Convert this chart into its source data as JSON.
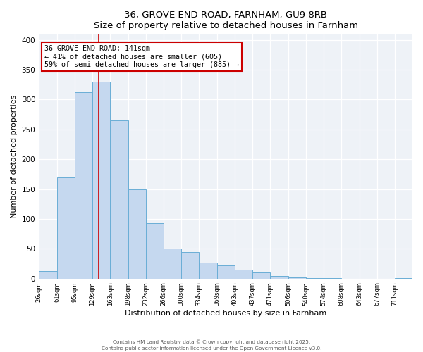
{
  "title": "36, GROVE END ROAD, FARNHAM, GU9 8RB",
  "subtitle": "Size of property relative to detached houses in Farnham",
  "xlabel": "Distribution of detached houses by size in Farnham",
  "ylabel": "Number of detached properties",
  "bar_labels": [
    "26sqm",
    "61sqm",
    "95sqm",
    "129sqm",
    "163sqm",
    "198sqm",
    "232sqm",
    "266sqm",
    "300sqm",
    "334sqm",
    "369sqm",
    "403sqm",
    "437sqm",
    "471sqm",
    "506sqm",
    "540sqm",
    "574sqm",
    "608sqm",
    "643sqm",
    "677sqm",
    "711sqm"
  ],
  "bar_values": [
    13,
    170,
    312,
    330,
    265,
    150,
    93,
    50,
    44,
    27,
    22,
    15,
    10,
    4,
    2,
    1,
    1,
    0,
    0,
    0,
    1
  ],
  "bin_edges": [
    26,
    61,
    95,
    129,
    163,
    198,
    232,
    266,
    300,
    334,
    369,
    403,
    437,
    471,
    506,
    540,
    574,
    608,
    643,
    677,
    711,
    745
  ],
  "bar_color": "#c5d8ef",
  "bar_edgecolor": "#6aaed6",
  "property_line_x": 141,
  "property_line_color": "#cc0000",
  "annotation_line1": "36 GROVE END ROAD: 141sqm",
  "annotation_line2": "← 41% of detached houses are smaller (605)",
  "annotation_line3": "59% of semi-detached houses are larger (885) →",
  "annotation_box_edgecolor": "#cc0000",
  "ylim": [
    0,
    410
  ],
  "yticks": [
    0,
    50,
    100,
    150,
    200,
    250,
    300,
    350,
    400
  ],
  "background_color": "#eef2f7",
  "footer_line1": "Contains HM Land Registry data © Crown copyright and database right 2025.",
  "footer_line2": "Contains public sector information licensed under the Open Government Licence v3.0.",
  "fig_width": 6.0,
  "fig_height": 5.0,
  "dpi": 100
}
